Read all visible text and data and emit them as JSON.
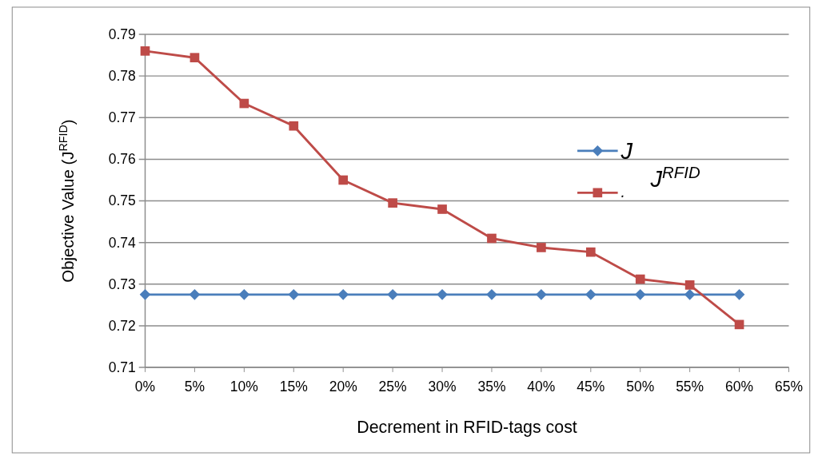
{
  "chart_data": {
    "type": "line",
    "xlabel": "Decrement in RFID-tags cost",
    "ylabel": "Objective Value (J$^{RFID}$)",
    "x": [
      0,
      5,
      10,
      15,
      20,
      25,
      30,
      35,
      40,
      45,
      50,
      55,
      60
    ],
    "series": [
      {
        "name": "J",
        "color": "#4a7ebb",
        "marker": "diamond",
        "values": [
          0.7275,
          0.7275,
          0.7275,
          0.7275,
          0.7275,
          0.7275,
          0.7275,
          0.7275,
          0.7275,
          0.7275,
          0.7275,
          0.7275,
          0.7275
        ]
      },
      {
        "name": ".",
        "color": "#be4b48",
        "marker": "square",
        "values": [
          0.786,
          0.7844,
          0.7734,
          0.768,
          0.755,
          0.7495,
          0.748,
          0.741,
          0.7388,
          0.7377,
          0.7312,
          0.7298,
          0.7203
        ]
      }
    ],
    "annotations": [
      "J$^{RFID}$"
    ],
    "xlim": [
      0,
      65
    ],
    "xticks": [
      {
        "value": 0,
        "label": "0%"
      },
      {
        "value": 5,
        "label": "5%"
      },
      {
        "value": 10,
        "label": "10%"
      },
      {
        "value": 15,
        "label": "15%"
      },
      {
        "value": 20,
        "label": "20%"
      },
      {
        "value": 25,
        "label": "25%"
      },
      {
        "value": 30,
        "label": "30%"
      },
      {
        "value": 35,
        "label": "35%"
      },
      {
        "value": 40,
        "label": "40%"
      },
      {
        "value": 45,
        "label": "45%"
      },
      {
        "value": 50,
        "label": "50%"
      },
      {
        "value": 55,
        "label": "55%"
      },
      {
        "value": 60,
        "label": "60%"
      },
      {
        "value": 65,
        "label": "65%"
      }
    ],
    "ylim": [
      0.71,
      0.79
    ],
    "yticks": [
      0.71,
      0.72,
      0.73,
      0.74,
      0.75,
      0.76,
      0.77,
      0.78,
      0.79
    ],
    "grid": "y",
    "legend": "right"
  }
}
